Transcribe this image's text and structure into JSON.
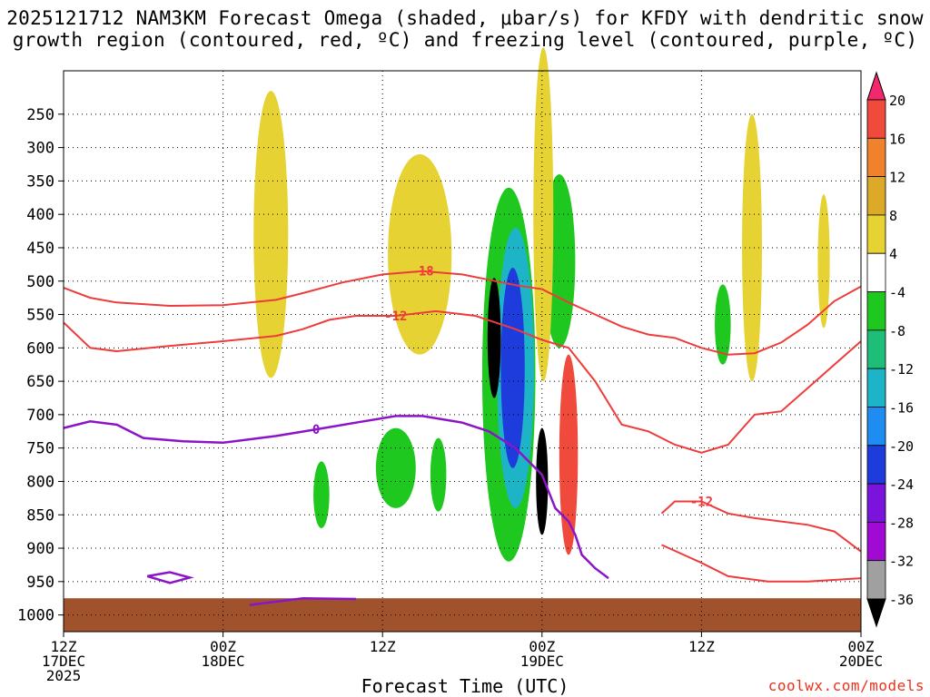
{
  "chart_data": {
    "type": "heatmap",
    "title_line1": "2025121712 NAM3KM Forecast Omega (shaded, μbar/s) for KFDY with dendritic snow",
    "title_line2": "growth region (contoured, red, ºC) and freezing level (contoured, purple, ºC)",
    "xlabel": "Forecast Time (UTC)",
    "ylabel": "",
    "credit": "coolwx.com/models",
    "x_range_hours": [
      0,
      60
    ],
    "y_range_mb": [
      1025,
      185
    ],
    "y_ticks": [
      250,
      300,
      350,
      400,
      450,
      500,
      550,
      600,
      650,
      700,
      750,
      800,
      850,
      900,
      950,
      1000
    ],
    "x_ticks": [
      {
        "hour": 0,
        "line1": "12Z",
        "line2": "17DEC",
        "line3": "2025"
      },
      {
        "hour": 12,
        "line1": "00Z",
        "line2": "18DEC",
        "line3": ""
      },
      {
        "hour": 24,
        "line1": "12Z",
        "line2": "",
        "line3": ""
      },
      {
        "hour": 36,
        "line1": "00Z",
        "line2": "19DEC",
        "line3": ""
      },
      {
        "hour": 48,
        "line1": "12Z",
        "line2": "",
        "line3": ""
      },
      {
        "hour": 60,
        "line1": "00Z",
        "line2": "20DEC",
        "line3": ""
      }
    ],
    "colorbar": {
      "labels": [
        "20",
        "16",
        "12",
        "8",
        "4",
        "-4",
        "-8",
        "-12",
        "-16",
        "-20",
        "-24",
        "-28",
        "-32",
        "-36"
      ],
      "colors": [
        "#f0286e",
        "#f04a3c",
        "#f0822d",
        "#dcaa28",
        "#e6d232",
        "#ffffff",
        "#1ec81e",
        "#1ebe78",
        "#1eb4c8",
        "#1e8cf0",
        "#1e3cdc",
        "#7a14dc",
        "#a00ad2",
        "#a0a0a0",
        "#000000"
      ]
    },
    "series": [
      {
        "name": "Dendritic growth -18 C (red)",
        "label": "-18",
        "points": [
          [
            0,
            510
          ],
          [
            2,
            525
          ],
          [
            4,
            532
          ],
          [
            8,
            537
          ],
          [
            12,
            536
          ],
          [
            16,
            528
          ],
          [
            18,
            518
          ],
          [
            21,
            502
          ],
          [
            24,
            490
          ],
          [
            27,
            485
          ],
          [
            30,
            490
          ],
          [
            32,
            498
          ],
          [
            34,
            506
          ],
          [
            36,
            512
          ],
          [
            38,
            532
          ],
          [
            40,
            550
          ],
          [
            42,
            568
          ],
          [
            44,
            580
          ],
          [
            46,
            585
          ],
          [
            48,
            600
          ],
          [
            50,
            610
          ],
          [
            52,
            608
          ],
          [
            54,
            592
          ],
          [
            56,
            565
          ],
          [
            58,
            530
          ],
          [
            60,
            508
          ]
        ]
      },
      {
        "name": "Dendritic growth -12 C (red)",
        "label": "-12",
        "points": [
          [
            0,
            562
          ],
          [
            2,
            600
          ],
          [
            4,
            605
          ],
          [
            8,
            597
          ],
          [
            12,
            590
          ],
          [
            16,
            582
          ],
          [
            18,
            572
          ],
          [
            20,
            558
          ],
          [
            22,
            552
          ],
          [
            25,
            552
          ],
          [
            28,
            545
          ],
          [
            31,
            552
          ],
          [
            34,
            572
          ],
          [
            36,
            588
          ],
          [
            38,
            600
          ],
          [
            40,
            650
          ],
          [
            42,
            715
          ],
          [
            44,
            725
          ],
          [
            46,
            745
          ],
          [
            48,
            757
          ],
          [
            50,
            745
          ],
          [
            52,
            700
          ],
          [
            54,
            695
          ],
          [
            56,
            660
          ],
          [
            58,
            625
          ],
          [
            60,
            590
          ]
        ]
      },
      {
        "name": "Dendritic growth -12 C lower (red)",
        "label": "-12",
        "points": [
          [
            45,
            848
          ],
          [
            46,
            830
          ],
          [
            48,
            830
          ],
          [
            50,
            848
          ],
          [
            52,
            855
          ],
          [
            56,
            865
          ],
          [
            58,
            875
          ],
          [
            60,
            905
          ]
        ]
      },
      {
        "name": "Dendritic growth -12 C base (red)",
        "label": "",
        "points": [
          [
            45,
            895
          ],
          [
            48,
            922
          ],
          [
            50,
            942
          ],
          [
            53,
            950
          ],
          [
            56,
            950
          ],
          [
            60,
            945
          ]
        ]
      },
      {
        "name": "Freezing level 0 C (purple)",
        "label": "0",
        "points": [
          [
            0,
            720
          ],
          [
            2,
            710
          ],
          [
            4,
            715
          ],
          [
            6,
            735
          ],
          [
            9,
            740
          ],
          [
            12,
            742
          ],
          [
            16,
            732
          ],
          [
            19,
            722
          ],
          [
            22,
            712
          ],
          [
            25,
            702
          ],
          [
            27,
            702
          ],
          [
            30,
            712
          ],
          [
            32,
            725
          ],
          [
            34,
            750
          ],
          [
            36,
            790
          ],
          [
            37,
            840
          ],
          [
            38,
            860
          ],
          [
            38.5,
            880
          ],
          [
            39,
            910
          ],
          [
            40,
            930
          ],
          [
            41,
            945
          ]
        ]
      },
      {
        "name": "Freezing level 0 C small (purple)",
        "label": "",
        "points": [
          [
            6.3,
            942
          ],
          [
            8,
            936
          ],
          [
            9.5,
            944
          ],
          [
            8,
            952
          ],
          [
            6.3,
            942
          ]
        ]
      },
      {
        "name": "Freezing level 0 C surface (purple)",
        "label": "",
        "points": [
          [
            14,
            985
          ],
          [
            18,
            975
          ],
          [
            22,
            976
          ]
        ]
      }
    ],
    "shaded_regions": [
      {
        "value": -8,
        "center": [
          33.5,
          640
        ],
        "width_hours": 4.0,
        "height_mb": 560
      },
      {
        "value": -8,
        "center": [
          37.3,
          470
        ],
        "width_hours": 2.4,
        "height_mb": 260
      },
      {
        "value": -16,
        "center": [
          34.0,
          630
        ],
        "width_hours": 2.8,
        "height_mb": 420
      },
      {
        "value": -24,
        "center": [
          33.8,
          630
        ],
        "width_hours": 1.8,
        "height_mb": 300
      },
      {
        "value": -36,
        "center": [
          32.4,
          585
        ],
        "width_hours": 1.0,
        "height_mb": 180
      },
      {
        "value": -36,
        "center": [
          36.0,
          800
        ],
        "width_hours": 0.9,
        "height_mb": 160
      },
      {
        "value": 4,
        "center": [
          15.6,
          430
        ],
        "width_hours": 2.6,
        "height_mb": 430
      },
      {
        "value": 4,
        "center": [
          26.8,
          460
        ],
        "width_hours": 4.8,
        "height_mb": 300
      },
      {
        "value": 4,
        "center": [
          36.1,
          400
        ],
        "width_hours": 1.5,
        "height_mb": 500
      },
      {
        "value": 4,
        "center": [
          51.8,
          450
        ],
        "width_hours": 1.5,
        "height_mb": 400
      },
      {
        "value": 4,
        "center": [
          57.2,
          470
        ],
        "width_hours": 0.9,
        "height_mb": 200
      },
      {
        "value": 16,
        "center": [
          38.0,
          760
        ],
        "width_hours": 1.4,
        "height_mb": 300
      },
      {
        "value": -8,
        "center": [
          25.0,
          780
        ],
        "width_hours": 3.0,
        "height_mb": 120
      },
      {
        "value": -8,
        "center": [
          19.4,
          820
        ],
        "width_hours": 1.2,
        "height_mb": 100
      },
      {
        "value": -8,
        "center": [
          28.2,
          790
        ],
        "width_hours": 1.2,
        "height_mb": 110
      },
      {
        "value": -8,
        "center": [
          49.6,
          565
        ],
        "width_hours": 1.2,
        "height_mb": 120
      }
    ],
    "terrain_color": "#a0522d"
  }
}
